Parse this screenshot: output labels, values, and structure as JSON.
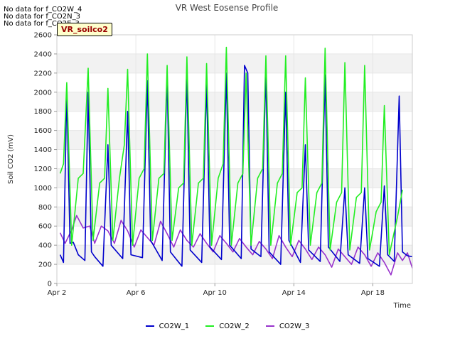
{
  "notices": [
    "No data for f_CO2W_4",
    "No data for f_CO2N_3",
    "No data for f_CO2E_3"
  ],
  "site_tag": "VR_soilco2",
  "colors": {
    "CO2W_1": "#0000cc",
    "CO2W_2": "#22ee22",
    "CO2W_3": "#9933cc",
    "band": "#f2f2f2"
  },
  "chart_data": {
    "type": "line",
    "title": "VR West Eosense Profile",
    "xlabel": "Time",
    "ylabel": "Soil CO2 (mV)",
    "xlim": [
      "2024-04-02",
      "2024-04-20"
    ],
    "ylim": [
      0,
      2600
    ],
    "yticks": [
      0,
      200,
      400,
      600,
      800,
      1000,
      1200,
      1400,
      1600,
      1800,
      2000,
      2200,
      2400,
      2600
    ],
    "xticks": [
      {
        "date": "2024-04-02",
        "label": "Apr 2"
      },
      {
        "date": "2024-04-06",
        "label": "Apr 6"
      },
      {
        "date": "2024-04-10",
        "label": "Apr 10"
      },
      {
        "date": "2024-04-14",
        "label": "Apr 14"
      },
      {
        "date": "2024-04-18",
        "label": "Apr 18"
      }
    ],
    "legend_position": "bottom",
    "series": [
      {
        "name": "CO2W_1",
        "points": [
          [
            "2024-04-02 04:00",
            300
          ],
          [
            "2024-04-02 08:00",
            220
          ],
          [
            "2024-04-02 12:00",
            2000
          ],
          [
            "2024-04-02 16:00",
            420
          ],
          [
            "2024-04-02 20:00",
            430
          ],
          [
            "2024-04-03 02:00",
            300
          ],
          [
            "2024-04-03 10:00",
            240
          ],
          [
            "2024-04-03 14:00",
            2000
          ],
          [
            "2024-04-03 18:00",
            330
          ],
          [
            "2024-04-03 22:00",
            280
          ],
          [
            "2024-04-04 08:00",
            180
          ],
          [
            "2024-04-04 14:00",
            1450
          ],
          [
            "2024-04-04 18:00",
            400
          ],
          [
            "2024-04-05 08:00",
            260
          ],
          [
            "2024-04-05 14:00",
            1800
          ],
          [
            "2024-04-05 18:00",
            300
          ],
          [
            "2024-04-06 08:00",
            270
          ],
          [
            "2024-04-06 14:00",
            2120
          ],
          [
            "2024-04-06 18:00",
            450
          ],
          [
            "2024-04-07 08:00",
            240
          ],
          [
            "2024-04-07 14:00",
            2180
          ],
          [
            "2024-04-07 18:00",
            330
          ],
          [
            "2024-04-08 08:00",
            180
          ],
          [
            "2024-04-08 14:00",
            2180
          ],
          [
            "2024-04-08 18:00",
            350
          ],
          [
            "2024-04-09 08:00",
            220
          ],
          [
            "2024-04-09 14:00",
            2100
          ],
          [
            "2024-04-09 18:00",
            380
          ],
          [
            "2024-04-10 08:00",
            250
          ],
          [
            "2024-04-10 14:00",
            2200
          ],
          [
            "2024-04-10 18:00",
            400
          ],
          [
            "2024-04-11 08:00",
            260
          ],
          [
            "2024-04-11 12:00",
            2280
          ],
          [
            "2024-04-11 16:00",
            2200
          ],
          [
            "2024-04-11 20:00",
            360
          ],
          [
            "2024-04-12 08:00",
            280
          ],
          [
            "2024-04-12 14:00",
            2220
          ],
          [
            "2024-04-12 18:00",
            330
          ],
          [
            "2024-04-13 08:00",
            200
          ],
          [
            "2024-04-13 14:00",
            2000
          ],
          [
            "2024-04-13 18:00",
            450
          ],
          [
            "2024-04-14 08:00",
            220
          ],
          [
            "2024-04-14 14:00",
            1450
          ],
          [
            "2024-04-14 18:00",
            350
          ],
          [
            "2024-04-15 08:00",
            230
          ],
          [
            "2024-04-15 14:00",
            2180
          ],
          [
            "2024-04-15 18:00",
            380
          ],
          [
            "2024-04-16 08:00",
            230
          ],
          [
            "2024-04-16 14:00",
            1000
          ],
          [
            "2024-04-16 18:00",
            300
          ],
          [
            "2024-04-17 08:00",
            210
          ],
          [
            "2024-04-17 14:00",
            1000
          ],
          [
            "2024-04-17 18:00",
            260
          ],
          [
            "2024-04-18 08:00",
            180
          ],
          [
            "2024-04-18 14:00",
            1020
          ],
          [
            "2024-04-18 18:00",
            300
          ],
          [
            "2024-04-19 02:00",
            230
          ],
          [
            "2024-04-19 08:00",
            1960
          ],
          [
            "2024-04-19 12:00",
            330
          ],
          [
            "2024-04-19 18:00",
            290
          ],
          [
            "2024-04-20 00:00",
            280
          ]
        ]
      },
      {
        "name": "CO2W_2",
        "points": [
          [
            "2024-04-02 04:00",
            1150
          ],
          [
            "2024-04-02 08:00",
            1250
          ],
          [
            "2024-04-02 12:00",
            2100
          ],
          [
            "2024-04-02 18:00",
            400
          ],
          [
            "2024-04-03 02:00",
            1100
          ],
          [
            "2024-04-03 08:00",
            1150
          ],
          [
            "2024-04-03 14:00",
            2250
          ],
          [
            "2024-04-03 20:00",
            450
          ],
          [
            "2024-04-04 04:00",
            1050
          ],
          [
            "2024-04-04 10:00",
            1100
          ],
          [
            "2024-04-04 14:00",
            2040
          ],
          [
            "2024-04-04 20:00",
            450
          ],
          [
            "2024-04-05 04:00",
            1100
          ],
          [
            "2024-04-05 10:00",
            1450
          ],
          [
            "2024-04-05 14:00",
            2240
          ],
          [
            "2024-04-05 20:00",
            400
          ],
          [
            "2024-04-06 04:00",
            1100
          ],
          [
            "2024-04-06 10:00",
            1200
          ],
          [
            "2024-04-06 14:00",
            2400
          ],
          [
            "2024-04-06 20:00",
            450
          ],
          [
            "2024-04-07 04:00",
            1100
          ],
          [
            "2024-04-07 10:00",
            1150
          ],
          [
            "2024-04-07 14:00",
            2280
          ],
          [
            "2024-04-07 20:00",
            450
          ],
          [
            "2024-04-08 04:00",
            1000
          ],
          [
            "2024-04-08 10:00",
            1050
          ],
          [
            "2024-04-08 14:00",
            2370
          ],
          [
            "2024-04-08 20:00",
            400
          ],
          [
            "2024-04-09 04:00",
            1050
          ],
          [
            "2024-04-09 10:00",
            1100
          ],
          [
            "2024-04-09 14:00",
            2300
          ],
          [
            "2024-04-09 20:00",
            400
          ],
          [
            "2024-04-10 04:00",
            1100
          ],
          [
            "2024-04-10 10:00",
            1250
          ],
          [
            "2024-04-10 14:00",
            2470
          ],
          [
            "2024-04-10 20:00",
            400
          ],
          [
            "2024-04-11 04:00",
            1050
          ],
          [
            "2024-04-11 10:00",
            1150
          ],
          [
            "2024-04-11 14:00",
            2200
          ],
          [
            "2024-04-11 20:00",
            400
          ],
          [
            "2024-04-12 04:00",
            1100
          ],
          [
            "2024-04-12 10:00",
            1200
          ],
          [
            "2024-04-12 14:00",
            2380
          ],
          [
            "2024-04-12 20:00",
            400
          ],
          [
            "2024-04-13 04:00",
            1050
          ],
          [
            "2024-04-13 10:00",
            1150
          ],
          [
            "2024-04-13 14:00",
            2380
          ],
          [
            "2024-04-13 20:00",
            400
          ],
          [
            "2024-04-14 04:00",
            950
          ],
          [
            "2024-04-14 10:00",
            1000
          ],
          [
            "2024-04-14 14:00",
            2150
          ],
          [
            "2024-04-14 20:00",
            400
          ],
          [
            "2024-04-15 04:00",
            950
          ],
          [
            "2024-04-15 10:00",
            1050
          ],
          [
            "2024-04-15 14:00",
            2460
          ],
          [
            "2024-04-15 20:00",
            350
          ],
          [
            "2024-04-16 04:00",
            850
          ],
          [
            "2024-04-16 10:00",
            950
          ],
          [
            "2024-04-16 14:00",
            2310
          ],
          [
            "2024-04-16 20:00",
            350
          ],
          [
            "2024-04-17 04:00",
            900
          ],
          [
            "2024-04-17 10:00",
            950
          ],
          [
            "2024-04-17 14:00",
            2280
          ],
          [
            "2024-04-17 20:00",
            350
          ],
          [
            "2024-04-18 04:00",
            750
          ],
          [
            "2024-04-18 10:00",
            850
          ],
          [
            "2024-04-18 14:00",
            1860
          ],
          [
            "2024-04-18 20:00",
            300
          ],
          [
            "2024-04-19 06:00",
            700
          ],
          [
            "2024-04-19 12:00",
            980
          ]
        ]
      },
      {
        "name": "CO2W_3",
        "points": [
          [
            "2024-04-02 04:00",
            530
          ],
          [
            "2024-04-02 10:00",
            420
          ],
          [
            "2024-04-02 18:00",
            560
          ],
          [
            "2024-04-03 00:00",
            710
          ],
          [
            "2024-04-03 08:00",
            580
          ],
          [
            "2024-04-03 16:00",
            600
          ],
          [
            "2024-04-03 22:00",
            420
          ],
          [
            "2024-04-04 06:00",
            600
          ],
          [
            "2024-04-04 14:00",
            550
          ],
          [
            "2024-04-04 22:00",
            420
          ],
          [
            "2024-04-05 06:00",
            660
          ],
          [
            "2024-04-05 14:00",
            550
          ],
          [
            "2024-04-05 22:00",
            380
          ],
          [
            "2024-04-06 06:00",
            560
          ],
          [
            "2024-04-06 14:00",
            480
          ],
          [
            "2024-04-06 22:00",
            400
          ],
          [
            "2024-04-07 06:00",
            650
          ],
          [
            "2024-04-07 14:00",
            520
          ],
          [
            "2024-04-07 22:00",
            380
          ],
          [
            "2024-04-08 06:00",
            560
          ],
          [
            "2024-04-08 14:00",
            450
          ],
          [
            "2024-04-08 22:00",
            380
          ],
          [
            "2024-04-09 06:00",
            520
          ],
          [
            "2024-04-09 14:00",
            420
          ],
          [
            "2024-04-09 22:00",
            330
          ],
          [
            "2024-04-10 06:00",
            500
          ],
          [
            "2024-04-10 14:00",
            420
          ],
          [
            "2024-04-10 22:00",
            330
          ],
          [
            "2024-04-11 06:00",
            470
          ],
          [
            "2024-04-11 14:00",
            380
          ],
          [
            "2024-04-11 22:00",
            300
          ],
          [
            "2024-04-12 06:00",
            440
          ],
          [
            "2024-04-12 14:00",
            360
          ],
          [
            "2024-04-12 22:00",
            260
          ],
          [
            "2024-04-13 06:00",
            500
          ],
          [
            "2024-04-13 14:00",
            380
          ],
          [
            "2024-04-13 22:00",
            280
          ],
          [
            "2024-04-14 06:00",
            450
          ],
          [
            "2024-04-14 14:00",
            360
          ],
          [
            "2024-04-14 22:00",
            250
          ],
          [
            "2024-04-15 06:00",
            380
          ],
          [
            "2024-04-15 14:00",
            300
          ],
          [
            "2024-04-15 22:00",
            170
          ],
          [
            "2024-04-16 06:00",
            360
          ],
          [
            "2024-04-16 14:00",
            280
          ],
          [
            "2024-04-16 22:00",
            200
          ],
          [
            "2024-04-17 06:00",
            380
          ],
          [
            "2024-04-17 14:00",
            300
          ],
          [
            "2024-04-17 22:00",
            180
          ],
          [
            "2024-04-18 06:00",
            320
          ],
          [
            "2024-04-18 14:00",
            220
          ],
          [
            "2024-04-18 22:00",
            90
          ],
          [
            "2024-04-19 06:00",
            320
          ],
          [
            "2024-04-19 12:00",
            240
          ],
          [
            "2024-04-19 18:00",
            320
          ],
          [
            "2024-04-20 00:00",
            160
          ]
        ]
      }
    ]
  }
}
